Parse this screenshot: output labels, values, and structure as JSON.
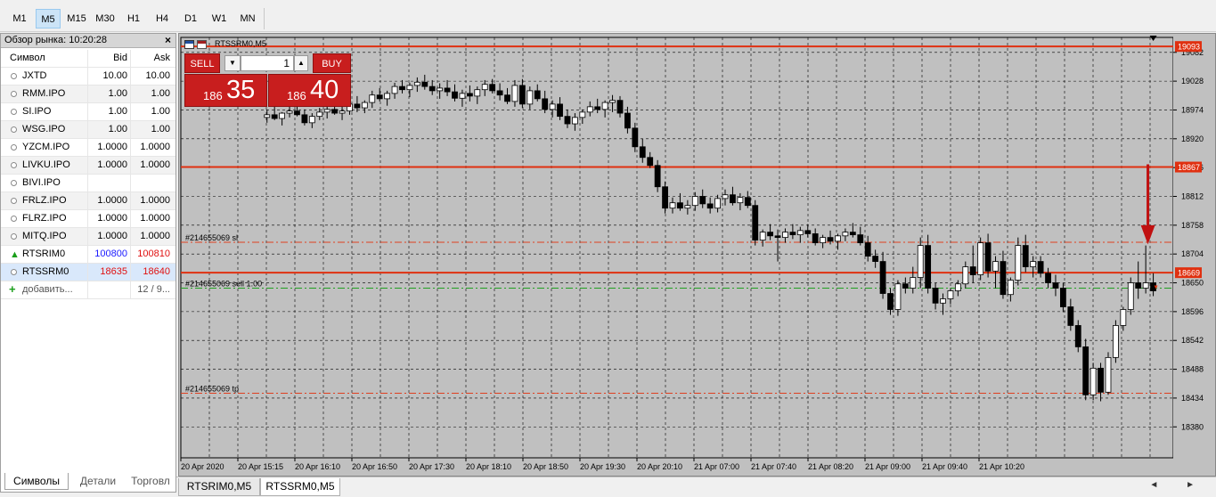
{
  "toolbar": {
    "timeframes": [
      {
        "label": "M1",
        "active": false
      },
      {
        "label": "M5",
        "active": true
      },
      {
        "label": "M15",
        "active": false
      },
      {
        "label": "M30",
        "active": false
      },
      {
        "label": "H1",
        "active": false
      },
      {
        "label": "H4",
        "active": false
      },
      {
        "label": "D1",
        "active": false
      },
      {
        "label": "W1",
        "active": false
      },
      {
        "label": "MN",
        "active": false
      }
    ]
  },
  "market_watch": {
    "title": "Обзор рынка: 10:20:28",
    "close": "×",
    "columns": {
      "symbol": "Символ",
      "bid": "Bid",
      "ask": "Ask"
    },
    "rows": [
      {
        "symbol": "JXTD",
        "bid": "10.00",
        "ask": "10.00",
        "icon": "circle-icon"
      },
      {
        "symbol": "RMM.IPO",
        "bid": "1.00",
        "ask": "1.00",
        "icon": "circle-icon"
      },
      {
        "symbol": "SI.IPO",
        "bid": "1.00",
        "ask": "1.00",
        "icon": "circle-icon"
      },
      {
        "symbol": "WSG.IPO",
        "bid": "1.00",
        "ask": "1.00",
        "icon": "circle-icon"
      },
      {
        "symbol": "YZCM.IPO",
        "bid": "1.0000",
        "ask": "1.0000",
        "icon": "circle-icon"
      },
      {
        "symbol": "LIVKU.IPO",
        "bid": "1.0000",
        "ask": "1.0000",
        "icon": "circle-icon"
      },
      {
        "symbol": "BIVI.IPO",
        "bid": "",
        "ask": "",
        "icon": "circle-icon"
      },
      {
        "symbol": "FRLZ.IPO",
        "bid": "1.0000",
        "ask": "1.0000",
        "icon": "circle-icon"
      },
      {
        "symbol": "FLRZ.IPO",
        "bid": "1.0000",
        "ask": "1.0000",
        "icon": "circle-icon"
      },
      {
        "symbol": "MITQ.IPO",
        "bid": "1.0000",
        "ask": "1.0000",
        "icon": "circle-icon"
      },
      {
        "symbol": "RTSRIM0",
        "bid": "100800",
        "ask": "100810",
        "icon": "up-arrow-icon",
        "bid_color": "#1a1aff",
        "ask_color": "#e01010"
      },
      {
        "symbol": "RTSSRM0",
        "bid": "18635",
        "ask": "18640",
        "icon": "circle-icon",
        "bid_color": "#e01010",
        "ask_color": "#e01010",
        "selected": true
      }
    ],
    "add_label": "добавить...",
    "count": "12 / 9...",
    "tabs": [
      "Символы",
      "Детали",
      "Торговл"
    ]
  },
  "chart": {
    "title": "RTSSRM0,M5",
    "trade_panel": {
      "sell_label": "SELL",
      "buy_label": "BUY",
      "lot": "1",
      "sell_small": "186",
      "sell_big": "35",
      "buy_small": "186",
      "buy_big": "40",
      "dropdown_icon": "▼",
      "up_icon": "▲"
    },
    "order_labels": [
      {
        "text": "#214655069 sl",
        "price": 18726
      },
      {
        "text": "#214655069 sell 1.00",
        "price": 18640
      },
      {
        "text": "#214655069 tp",
        "price": 18443
      }
    ],
    "bottom_tabs": [
      "RTSRIM0,M5",
      "RTSSRM0,M5"
    ],
    "active_tab": "RTSSRM0,M5",
    "scroll_icons": "◄ ►"
  },
  "chart_data": {
    "type": "candlestick",
    "symbol": "RTSSRM0",
    "timeframe": "M5",
    "ylim": [
      18322,
      19110
    ],
    "y_ticks": [
      19082,
      19028,
      18974,
      18920,
      18866,
      18812,
      18758,
      18704,
      18650,
      18596,
      18542,
      18488,
      18434,
      18380
    ],
    "x_labels": [
      "20 Apr 2020",
      "20 Apr 15:15",
      "20 Apr 16:10",
      "20 Apr 16:50",
      "20 Apr 17:30",
      "20 Apr 18:10",
      "20 Apr 18:50",
      "20 Apr 19:30",
      "20 Apr 20:10",
      "21 Apr 07:00",
      "21 Apr 07:40",
      "21 Apr 08:20",
      "21 Apr 09:00",
      "21 Apr 09:40",
      "21 Apr 10:20"
    ],
    "price_tags": [
      {
        "price": 19093,
        "label": "19093",
        "color": "#e03010"
      },
      {
        "price": 18867,
        "label": "18867",
        "color": "#e03010"
      },
      {
        "price": 18669,
        "label": "18669",
        "color": "#e03010"
      }
    ],
    "horizontal_lines": [
      {
        "price": 19093,
        "style": "solid",
        "color": "#e03010"
      },
      {
        "price": 18867,
        "style": "solid",
        "color": "#e03010"
      },
      {
        "price": 18669,
        "style": "solid",
        "color": "#e03010"
      },
      {
        "price": 18726,
        "style": "dashdot",
        "color": "#e04020"
      },
      {
        "price": 18640,
        "style": "dashdot",
        "color": "#20a020"
      },
      {
        "price": 18443,
        "style": "dashdot",
        "color": "#e04020"
      }
    ],
    "grid": true,
    "background": "#c0c0c0",
    "annotation": {
      "type": "arrow-down",
      "color": "#c01010"
    },
    "candles": [
      [
        18960,
        18975,
        18950,
        18965
      ],
      [
        18965,
        18980,
        18955,
        18958
      ],
      [
        18958,
        18970,
        18945,
        18968
      ],
      [
        18968,
        18985,
        18960,
        18972
      ],
      [
        18972,
        18990,
        18962,
        18965
      ],
      [
        18965,
        18975,
        18945,
        18950
      ],
      [
        18950,
        18968,
        18940,
        18962
      ],
      [
        18962,
        18978,
        18955,
        18970
      ],
      [
        18970,
        18985,
        18958,
        18975
      ],
      [
        18975,
        18990,
        18965,
        18968
      ],
      [
        18968,
        18980,
        18955,
        18972
      ],
      [
        18972,
        18995,
        18965,
        18985
      ],
      [
        18985,
        19000,
        18970,
        18978
      ],
      [
        18978,
        18992,
        18968,
        18988
      ],
      [
        18988,
        19010,
        18978,
        19002
      ],
      [
        19002,
        19015,
        18990,
        18995
      ],
      [
        18995,
        19010,
        18982,
        19005
      ],
      [
        19005,
        19025,
        18995,
        19018
      ],
      [
        19018,
        19030,
        19005,
        19012
      ],
      [
        19012,
        19025,
        18998,
        19020
      ],
      [
        19020,
        19035,
        19008,
        19026
      ],
      [
        19026,
        19040,
        19012,
        19018
      ],
      [
        19018,
        19030,
        19002,
        19010
      ],
      [
        19010,
        19024,
        18995,
        19015
      ],
      [
        19015,
        19030,
        19000,
        19008
      ],
      [
        19008,
        19022,
        18990,
        18996
      ],
      [
        18996,
        19012,
        18980,
        19005
      ],
      [
        19005,
        19020,
        18990,
        19000
      ],
      [
        19000,
        19018,
        18985,
        19012
      ],
      [
        19012,
        19030,
        19000,
        19022
      ],
      [
        19022,
        19032,
        19005,
        19010
      ],
      [
        19010,
        19024,
        18992,
        19002
      ],
      [
        19002,
        19015,
        18985,
        18990
      ],
      [
        18990,
        19030,
        18980,
        19020
      ],
      [
        19020,
        19032,
        18978,
        18985
      ],
      [
        18985,
        19018,
        18975,
        19010
      ],
      [
        19010,
        19022,
        18990,
        18995
      ],
      [
        18995,
        19010,
        18968,
        18975
      ],
      [
        18975,
        18992,
        18960,
        18985
      ],
      [
        18985,
        18998,
        18955,
        18962
      ],
      [
        18962,
        18975,
        18940,
        18948
      ],
      [
        18948,
        18968,
        18935,
        18960
      ],
      [
        18960,
        18975,
        18948,
        18970
      ],
      [
        18970,
        18990,
        18962,
        18980
      ],
      [
        18980,
        18995,
        18968,
        18975
      ],
      [
        18975,
        18992,
        18960,
        18988
      ],
      [
        18988,
        19002,
        18970,
        18992
      ],
      [
        18992,
        19000,
        18960,
        18968
      ],
      [
        18968,
        18980,
        18930,
        18940
      ],
      [
        18940,
        18950,
        18895,
        18905
      ],
      [
        18905,
        18920,
        18875,
        18885
      ],
      [
        18885,
        18895,
        18865,
        18870
      ],
      [
        18870,
        18880,
        18820,
        18830
      ],
      [
        18830,
        18840,
        18780,
        18790
      ],
      [
        18790,
        18810,
        18780,
        18800
      ],
      [
        18800,
        18818,
        18785,
        18790
      ],
      [
        18790,
        18805,
        18778,
        18795
      ],
      [
        18795,
        18820,
        18785,
        18812
      ],
      [
        18812,
        18825,
        18790,
        18798
      ],
      [
        18798,
        18810,
        18780,
        18790
      ],
      [
        18790,
        18815,
        18782,
        18808
      ],
      [
        18808,
        18825,
        18795,
        18815
      ],
      [
        18815,
        18830,
        18795,
        18800
      ],
      [
        18800,
        18818,
        18786,
        18810
      ],
      [
        18810,
        18822,
        18790,
        18795
      ],
      [
        18795,
        18805,
        18720,
        18730
      ],
      [
        18730,
        18750,
        18718,
        18745
      ],
      [
        18745,
        18760,
        18730,
        18738
      ],
      [
        18738,
        18750,
        18690,
        18735
      ],
      [
        18735,
        18752,
        18725,
        18745
      ],
      [
        18745,
        18760,
        18732,
        18740
      ],
      [
        18740,
        18755,
        18725,
        18748
      ],
      [
        18748,
        18760,
        18735,
        18742
      ],
      [
        18742,
        18752,
        18720,
        18725
      ],
      [
        18725,
        18740,
        18715,
        18735
      ],
      [
        18735,
        18748,
        18722,
        18728
      ],
      [
        18728,
        18742,
        18712,
        18738
      ],
      [
        18738,
        18752,
        18728,
        18745
      ],
      [
        18745,
        18762,
        18735,
        18740
      ],
      [
        18740,
        18755,
        18720,
        18725
      ],
      [
        18725,
        18738,
        18690,
        18700
      ],
      [
        18700,
        18712,
        18678,
        18690
      ],
      [
        18690,
        18708,
        18620,
        18630
      ],
      [
        18630,
        18640,
        18590,
        18600
      ],
      [
        18600,
        18655,
        18588,
        18648
      ],
      [
        18648,
        18660,
        18630,
        18640
      ],
      [
        18640,
        18680,
        18630,
        18660
      ],
      [
        18660,
        18735,
        18640,
        18720
      ],
      [
        18720,
        18740,
        18630,
        18640
      ],
      [
        18640,
        18650,
        18600,
        18612
      ],
      [
        18612,
        18630,
        18590,
        18620
      ],
      [
        18620,
        18640,
        18610,
        18635
      ],
      [
        18635,
        18655,
        18625,
        18648
      ],
      [
        18648,
        18690,
        18640,
        18680
      ],
      [
        18680,
        18720,
        18650,
        18665
      ],
      [
        18665,
        18735,
        18655,
        18725
      ],
      [
        18725,
        18742,
        18660,
        18672
      ],
      [
        18672,
        18700,
        18640,
        18690
      ],
      [
        18690,
        18710,
        18620,
        18628
      ],
      [
        18628,
        18660,
        18615,
        18655
      ],
      [
        18655,
        18735,
        18645,
        18720
      ],
      [
        18720,
        18740,
        18670,
        18680
      ],
      [
        18680,
        18700,
        18660,
        18690
      ],
      [
        18690,
        18700,
        18660,
        18668
      ],
      [
        18668,
        18678,
        18640,
        18650
      ],
      [
        18650,
        18665,
        18625,
        18640
      ],
      [
        18640,
        18650,
        18595,
        18605
      ],
      [
        18605,
        18620,
        18560,
        18570
      ],
      [
        18570,
        18580,
        18520,
        18530
      ],
      [
        18530,
        18545,
        18430,
        18440
      ],
      [
        18440,
        18500,
        18430,
        18490
      ],
      [
        18490,
        18500,
        18428,
        18445
      ],
      [
        18445,
        18520,
        18440,
        18510
      ],
      [
        18510,
        18580,
        18500,
        18570
      ],
      [
        18570,
        18605,
        18560,
        18600
      ],
      [
        18600,
        18660,
        18590,
        18650
      ],
      [
        18650,
        18690,
        18620,
        18640
      ],
      [
        18640,
        18720,
        18630,
        18650
      ],
      [
        18650,
        18668,
        18625,
        18635
      ]
    ]
  }
}
